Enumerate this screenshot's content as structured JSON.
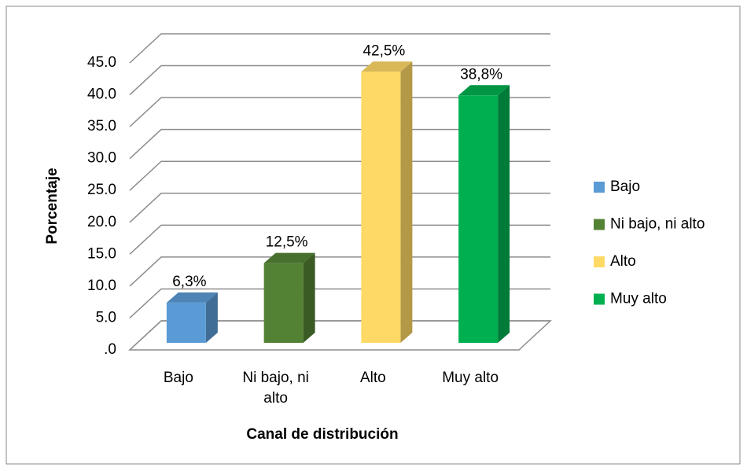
{
  "chart_data": {
    "type": "bar3d",
    "categories": [
      "Bajo",
      "Ni bajo, ni alto",
      "Alto",
      "Muy alto"
    ],
    "series": [
      {
        "name": "Bajo",
        "color": "#5b9bd5"
      },
      {
        "name": "Ni bajo, ni alto",
        "color": "#548235"
      },
      {
        "name": "Alto",
        "color": "#ffd966"
      },
      {
        "name": "Muy alto",
        "color": "#00b050"
      }
    ],
    "values": [
      6.3,
      12.5,
      42.5,
      38.8
    ],
    "value_labels": [
      "6,3%",
      "12,5%",
      "42,5%",
      "38,8%"
    ],
    "ylabel": "Porcentaje",
    "xlabel": "Canal de distribución",
    "ylim": [
      0,
      45
    ],
    "yticks": [
      {
        "value": 0,
        "label": ".0"
      },
      {
        "value": 5,
        "label": "5.0"
      },
      {
        "value": 10,
        "label": "10.0"
      },
      {
        "value": 15,
        "label": "15.0"
      },
      {
        "value": 20,
        "label": "20.0"
      },
      {
        "value": 25,
        "label": "25.0"
      },
      {
        "value": 30,
        "label": "30.0"
      },
      {
        "value": 35,
        "label": "35.0"
      },
      {
        "value": 40,
        "label": "40.0"
      },
      {
        "value": 45,
        "label": "45.0"
      }
    ],
    "grid": true,
    "legend": "right"
  }
}
